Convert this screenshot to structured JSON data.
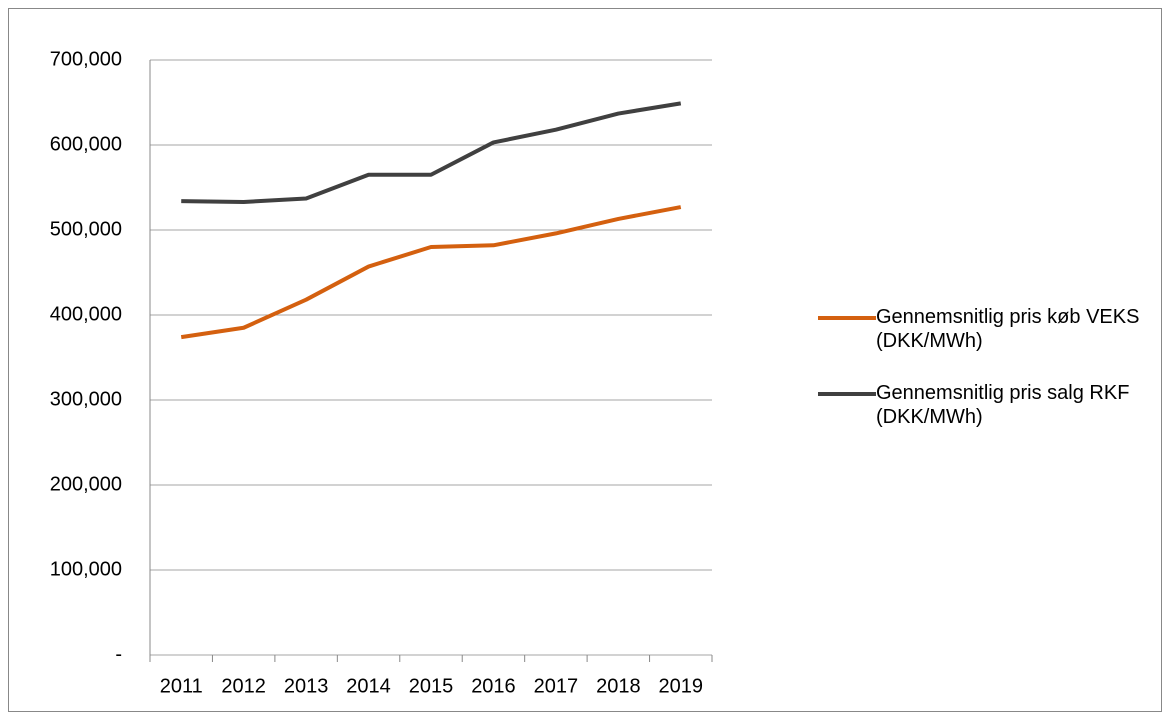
{
  "chart_data": {
    "type": "line",
    "categories": [
      "2011",
      "2012",
      "2013",
      "2014",
      "2015",
      "2016",
      "2017",
      "2018",
      "2019"
    ],
    "series": [
      {
        "name": "Gennemsnitlig pris køb VEKS (DKK/MWh)",
        "color": "#d4600f",
        "values": [
          374000,
          385000,
          418000,
          457000,
          480000,
          482000,
          496000,
          513000,
          527000
        ]
      },
      {
        "name": "Gennemsnitlig pris salg RKF (DKK/MWh)",
        "color": "#404040",
        "values": [
          534000,
          533000,
          537000,
          565000,
          565000,
          603000,
          618000,
          637000,
          649000
        ]
      }
    ],
    "ylim": [
      0,
      700000
    ],
    "yticks": [
      {
        "value": 0,
        "label": "-"
      },
      {
        "value": 100000,
        "label": "100,000"
      },
      {
        "value": 200000,
        "label": "200,000"
      },
      {
        "value": 300000,
        "label": "300,000"
      },
      {
        "value": 400000,
        "label": "400,000"
      },
      {
        "value": 500000,
        "label": "500,000"
      },
      {
        "value": 600000,
        "label": "600,000"
      },
      {
        "value": 700000,
        "label": "700,000"
      }
    ],
    "grid": true,
    "legend": "right"
  }
}
